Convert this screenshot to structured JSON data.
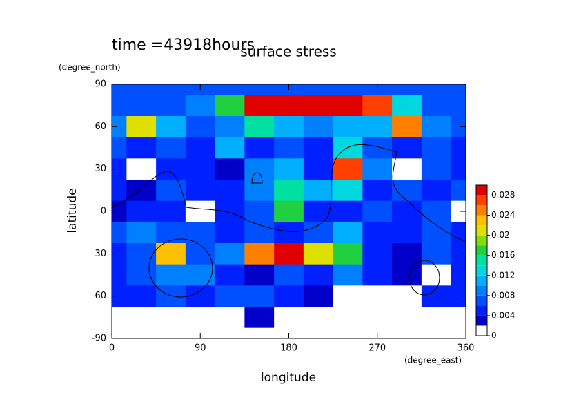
{
  "chart_data": {
    "type": "contour",
    "title": "surface stress",
    "subtitle": "time =43918hours",
    "x_label": "longitude",
    "x_unit": "(degree_east)",
    "y_label": "latitude",
    "y_unit": "(degree_north)",
    "x": [
      0,
      30,
      60,
      90,
      120,
      150,
      180,
      210,
      240,
      270,
      300,
      330,
      360
    ],
    "y": [
      90,
      75,
      60,
      45,
      30,
      15,
      0,
      -15,
      -30,
      -45,
      -60,
      -75,
      -90
    ],
    "z": [
      [
        0.006,
        0.006,
        0.006,
        0.006,
        0.006,
        0.006,
        0.006,
        0.006,
        0.006,
        0.006,
        0.006,
        0.006,
        0.006
      ],
      [
        0.006,
        0.006,
        0.006,
        0.008,
        0.016,
        0.028,
        0.03,
        0.03,
        0.028,
        0.026,
        0.012,
        0.006,
        0.006
      ],
      [
        0.008,
        0.02,
        0.01,
        0.006,
        0.008,
        0.014,
        0.01,
        0.008,
        0.01,
        0.01,
        0.024,
        0.008,
        0.006
      ],
      [
        0.006,
        0.004,
        0.006,
        0.004,
        0.01,
        0.004,
        0.006,
        0.004,
        0.012,
        0.006,
        0.004,
        0.006,
        0.004
      ],
      [
        0.004,
        0,
        0.004,
        0.004,
        0.002,
        0.008,
        0.01,
        0.004,
        0.026,
        0.008,
        0,
        0.006,
        0.004
      ],
      [
        0.004,
        0.002,
        0.006,
        0.004,
        0.004,
        0.008,
        0.014,
        0.01,
        0.012,
        0.004,
        0.006,
        0.004,
        0.006
      ],
      [
        0.002,
        0.004,
        0.004,
        0,
        0.004,
        0.006,
        0.016,
        0.004,
        0.004,
        0.006,
        0.004,
        0.006,
        0
      ],
      [
        0.006,
        0.008,
        0.006,
        0.006,
        0.004,
        0.006,
        0.004,
        0.006,
        0.01,
        0.004,
        0.004,
        0.006,
        0.004
      ],
      [
        0.004,
        0.006,
        0.022,
        0.006,
        0.008,
        0.024,
        0.028,
        0.02,
        0.016,
        0.004,
        0.002,
        0.006,
        0.004
      ],
      [
        0.004,
        0.006,
        0.008,
        0.008,
        0.004,
        0.002,
        0.006,
        0.004,
        0.008,
        0.004,
        0.002,
        0,
        0.004
      ],
      [
        0.004,
        0.004,
        0.006,
        0.004,
        0.006,
        0.006,
        0.004,
        0.002,
        0,
        0,
        0,
        0.004,
        0.004
      ],
      [
        0,
        0,
        0,
        0,
        0,
        0.002,
        0,
        0,
        0,
        0,
        0,
        0,
        0
      ],
      [
        0,
        0,
        0,
        0,
        0,
        0,
        0,
        0,
        0,
        0,
        0,
        0,
        0
      ]
    ],
    "xlim": [
      0,
      360
    ],
    "xticks": [
      0,
      90,
      180,
      270,
      360
    ],
    "ylim": [
      -90,
      90
    ],
    "yticks": [
      90,
      60,
      30,
      0,
      -30,
      -60,
      -90
    ],
    "colorbar": {
      "lim": [
        0,
        0.03
      ],
      "ticks": [
        0,
        0.004,
        0.008,
        0.012,
        0.016,
        0.02,
        0.024,
        0.028
      ],
      "colors": [
        "#ffffff",
        "#0000c8",
        "#0020ff",
        "#0050ff",
        "#0080ff",
        "#00b0ff",
        "#00d8e0",
        "#00e0a0",
        "#20d040",
        "#80e000",
        "#e0e000",
        "#ffc000",
        "#ff8000",
        "#ff4000",
        "#e00000"
      ]
    }
  }
}
